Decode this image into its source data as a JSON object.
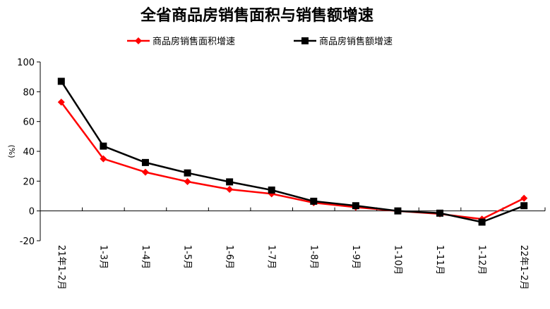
{
  "chart_data": {
    "type": "line",
    "title": "全省商品房销售面积与销售额增速",
    "ylabel": "(%)",
    "xlabel": "",
    "ylim": [
      -20,
      100
    ],
    "yticks": [
      -20,
      0,
      20,
      40,
      60,
      80,
      100
    ],
    "categories": [
      "21年1-2月",
      "1-3月",
      "1-4月",
      "1-5月",
      "1-6月",
      "1-7月",
      "1-8月",
      "1-9月",
      "1-10月",
      "1-11月",
      "1-12月",
      "22年1-2月"
    ],
    "legend_position": "top",
    "grid": false,
    "series": [
      {
        "name": "商品房销售面积增速",
        "color": "#ff0000",
        "marker": "diamond",
        "values": [
          73,
          35,
          26,
          19.7,
          14.5,
          11.5,
          5.5,
          2.5,
          0,
          -2,
          -5.5,
          8.5
        ]
      },
      {
        "name": "商品房销售额增速",
        "color": "#000000",
        "marker": "square",
        "values": [
          87,
          43.5,
          32.5,
          25.5,
          19.5,
          14,
          6.5,
          3.5,
          0,
          -1.5,
          -7.5,
          3.5
        ]
      }
    ]
  }
}
